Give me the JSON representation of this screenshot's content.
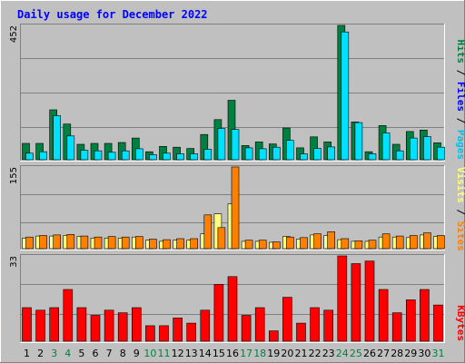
{
  "chart_data": {
    "type": "bar",
    "title": "Daily usage for December 2022",
    "categories": [
      "1",
      "2",
      "3",
      "4",
      "5",
      "6",
      "7",
      "8",
      "9",
      "10",
      "11",
      "12",
      "13",
      "14",
      "15",
      "16",
      "17",
      "18",
      "19",
      "20",
      "21",
      "22",
      "23",
      "24",
      "25",
      "26",
      "27",
      "28",
      "29",
      "30",
      "31"
    ],
    "weekend_days": [
      "3",
      "4",
      "10",
      "11",
      "17",
      "18",
      "24",
      "25",
      "31"
    ],
    "panels": [
      {
        "id": "hits-files-pages",
        "max_label": "452",
        "ylim": [
          0,
          452
        ],
        "series": [
          {
            "name": "Hits",
            "color": "#008040",
            "values": [
              55,
              55,
              168,
              120,
              52,
              55,
              55,
              58,
              73,
              27,
              45,
              42,
              38,
              85,
              135,
              200,
              48,
              60,
              53,
              107,
              40,
              77,
              60,
              452,
              127,
              27,
              115,
              52,
              95,
              100,
              57
            ]
          },
          {
            "name": "Files",
            "color": "#00e0ff",
            "values": [
              22,
              27,
              148,
              80,
              32,
              30,
              25,
              30,
              37,
              17,
              22,
              20,
              20,
              35,
              105,
              102,
              40,
              37,
              42,
              65,
              20,
              38,
              43,
              430,
              125,
              20,
              90,
              30,
              73,
              78,
              42
            ]
          },
          {
            "name": "Pages",
            "color": "#00c0e8",
            "values": []
          }
        ],
        "legend": [
          "Pages",
          "Files",
          "Hits"
        ],
        "legend_colors": [
          "#00e0ff",
          "#0000ff",
          "#008040"
        ]
      },
      {
        "id": "visits-sites",
        "max_label": "155",
        "ylim": [
          0,
          155
        ],
        "series": [
          {
            "name": "Visits",
            "color": "#ffff80",
            "values": [
              20,
              24,
              24,
              25,
              23,
              20,
              20,
              20,
              22,
              16,
              14,
              16,
              16,
              28,
              66,
              85,
              14,
              14,
              12,
              23,
              18,
              26,
              25,
              17,
              14,
              14,
              22,
              22,
              21,
              26,
              23
            ]
          },
          {
            "name": "Sites",
            "color": "#ff8000",
            "values": [
              22,
              25,
              26,
              27,
              24,
              22,
              23,
              22,
              23,
              18,
              17,
              19,
              19,
              64,
              40,
              155,
              16,
              16,
              13,
              22,
              21,
              28,
              32,
              19,
              15,
              16,
              28,
              24,
              25,
              30,
              25
            ]
          }
        ],
        "legend": [
          "Sites",
          "Visits"
        ],
        "legend_colors": [
          "#ff8000",
          "#0000ff",
          "#ffff80"
        ]
      },
      {
        "id": "kbytes",
        "max_label": "33",
        "ylim": [
          0,
          33
        ],
        "series": [
          {
            "name": "KBytes",
            "color": "#ff0000",
            "values": [
              13,
              12,
              13,
              20,
              13,
              10,
              12,
              11,
              13,
              6,
              6,
              9,
              7,
              12,
              22,
              25,
              10,
              13,
              4,
              17,
              7,
              13,
              12,
              33,
              30,
              31,
              20,
              11,
              16,
              20,
              14
            ]
          }
        ],
        "legend": [
          "KBytes"
        ],
        "legend_colors": [
          "#ff0000"
        ]
      }
    ],
    "colors": {
      "background": "#c0c0c0",
      "frame_light": "#ffffff",
      "frame_dark": "#808080",
      "grid": "#808080",
      "title": "#0000ff",
      "weekday_label": "#000000",
      "weekend_label": "#008040"
    }
  }
}
